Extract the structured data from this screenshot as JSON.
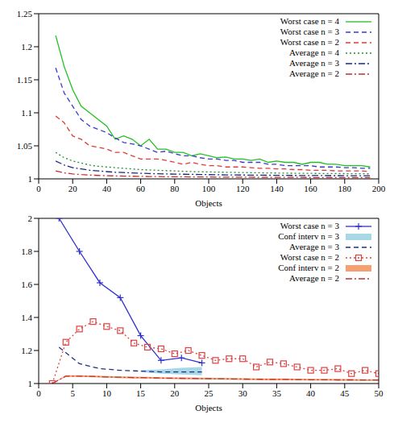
{
  "chart_data": [
    {
      "type": "line",
      "x_label": "Objects",
      "xlim": [
        0,
        200
      ],
      "xticks": [
        0,
        20,
        40,
        60,
        80,
        100,
        120,
        140,
        160,
        180,
        200
      ],
      "ylim": [
        1,
        1.25
      ],
      "yticks": [
        1,
        1.05,
        1.1,
        1.15,
        1.2,
        1.25
      ],
      "legend": "upper right",
      "x": [
        10,
        15,
        20,
        25,
        30,
        35,
        40,
        45,
        50,
        55,
        60,
        65,
        70,
        75,
        80,
        85,
        90,
        95,
        100,
        105,
        110,
        115,
        120,
        125,
        130,
        135,
        140,
        145,
        150,
        155,
        160,
        165,
        170,
        175,
        180,
        185,
        190,
        195
      ],
      "series": [
        {
          "name": "Worst case n = 4",
          "color": "#22c022",
          "line_style": "solid",
          "values": [
            1.217,
            1.17,
            1.135,
            1.11,
            1.1,
            1.09,
            1.08,
            1.06,
            1.065,
            1.06,
            1.05,
            1.06,
            1.045,
            1.045,
            1.04,
            1.04,
            1.035,
            1.038,
            1.035,
            1.032,
            1.033,
            1.03,
            1.03,
            1.028,
            1.03,
            1.025,
            1.027,
            1.025,
            1.025,
            1.022,
            1.025,
            1.025,
            1.022,
            1.022,
            1.02,
            1.02,
            1.02,
            1.018
          ]
        },
        {
          "name": "Worst case n = 3",
          "color": "#3a3ad0",
          "line_style": "dashed",
          "values": [
            1.168,
            1.13,
            1.11,
            1.09,
            1.08,
            1.075,
            1.07,
            1.062,
            1.055,
            1.053,
            1.05,
            1.045,
            1.04,
            1.042,
            1.038,
            1.035,
            1.035,
            1.032,
            1.03,
            1.03,
            1.028,
            1.028,
            1.025,
            1.025,
            1.025,
            1.022,
            1.022,
            1.02,
            1.02,
            1.02,
            1.02,
            1.018,
            1.018,
            1.018,
            1.017,
            1.017,
            1.016,
            1.016
          ]
        },
        {
          "name": "Worst case n = 2",
          "color": "#e03a3a",
          "line_style": "dashed",
          "values": [
            1.095,
            1.085,
            1.065,
            1.06,
            1.05,
            1.048,
            1.045,
            1.04,
            1.04,
            1.035,
            1.03,
            1.03,
            1.03,
            1.028,
            1.025,
            1.022,
            1.025,
            1.022,
            1.02,
            1.02,
            1.018,
            1.018,
            1.018,
            1.017,
            1.016,
            1.016,
            1.015,
            1.015,
            1.014,
            1.014,
            1.013,
            1.013,
            1.013,
            1.012,
            1.012,
            1.012,
            1.012,
            1.011
          ]
        },
        {
          "name": "Average n = 4",
          "color": "#1f8a3a",
          "line_style": "dotted",
          "values": [
            1.04,
            1.032,
            1.027,
            1.024,
            1.021,
            1.019,
            1.018,
            1.017,
            1.016,
            1.015,
            1.014,
            1.0135,
            1.013,
            1.0125,
            1.012,
            1.0115,
            1.011,
            1.0108,
            1.0105,
            1.0102,
            1.01,
            1.0098,
            1.0096,
            1.0094,
            1.0092,
            1.009,
            1.0088,
            1.0086,
            1.0085,
            1.0084,
            1.0083,
            1.0082,
            1.0081,
            1.008,
            1.0079,
            1.0078,
            1.0077,
            1.0076
          ]
        },
        {
          "name": "Average n = 3",
          "color": "#1c2a80",
          "line_style": "dashdot",
          "values": [
            1.027,
            1.021,
            1.017,
            1.015,
            1.013,
            1.012,
            1.011,
            1.01,
            1.0095,
            1.009,
            1.0085,
            1.008,
            1.0077,
            1.0074,
            1.0072,
            1.007,
            1.0068,
            1.0066,
            1.0064,
            1.0062,
            1.006,
            1.0059,
            1.0058,
            1.0057,
            1.0056,
            1.0055,
            1.0054,
            1.0053,
            1.0052,
            1.0051,
            1.005,
            1.005,
            1.0049,
            1.0049,
            1.0048,
            1.0048,
            1.0047,
            1.0047
          ]
        },
        {
          "name": "Average n = 2",
          "color": "#c03030",
          "line_style": "dashdot",
          "values": [
            1.012,
            1.009,
            1.0075,
            1.0065,
            1.0058,
            1.0052,
            1.0048,
            1.0045,
            1.0042,
            1.004,
            1.0038,
            1.0036,
            1.0034,
            1.0033,
            1.0032,
            1.0031,
            1.003,
            1.0029,
            1.0028,
            1.0027,
            1.0026,
            1.0026,
            1.0025,
            1.0025,
            1.0024,
            1.0024,
            1.0023,
            1.0023,
            1.0022,
            1.0022,
            1.0021,
            1.0021,
            1.002,
            1.002,
            1.002,
            1.0019,
            1.0019,
            1.0019
          ]
        }
      ]
    },
    {
      "type": "line",
      "x_label": "Objects",
      "xlim": [
        0,
        50
      ],
      "xticks": [
        0,
        5,
        10,
        15,
        20,
        25,
        30,
        35,
        40,
        45,
        50
      ],
      "ylim": [
        1,
        2
      ],
      "yticks": [
        1,
        1.2,
        1.4,
        1.6,
        1.8,
        2
      ],
      "legend": "upper right",
      "series": [
        {
          "name": "Worst case n = 3",
          "color": "#3030d0",
          "line_style": "solid",
          "marker": "plus",
          "x": [
            3,
            6,
            9,
            12,
            15,
            18,
            21,
            24
          ],
          "values": [
            2.0,
            1.8,
            1.61,
            1.52,
            1.29,
            1.14,
            1.155,
            1.125
          ]
        },
        {
          "name": "Conf interv n = 3",
          "type": "area",
          "color": "#a8d8e8",
          "x": [
            15,
            18,
            21,
            24
          ],
          "lower": [
            1.07,
            1.06,
            1.055,
            1.05
          ],
          "upper": [
            1.08,
            1.085,
            1.095,
            1.1
          ]
        },
        {
          "name": "Average n = 3",
          "color": "#203080",
          "line_style": "dashed",
          "x": [
            3,
            6,
            9,
            12,
            15,
            18,
            21,
            24
          ],
          "values": [
            1.22,
            1.12,
            1.09,
            1.08,
            1.075,
            1.07,
            1.07,
            1.07
          ]
        },
        {
          "name": "Worst case n = 2",
          "color": "#e04040",
          "line_style": "dotted",
          "marker": "square",
          "x": [
            2,
            4,
            6,
            8,
            10,
            12,
            14,
            16,
            18,
            20,
            22,
            24,
            26,
            28,
            30,
            32,
            34,
            36,
            38,
            40,
            42,
            44,
            46,
            48,
            50
          ],
          "values": [
            1.0,
            1.25,
            1.33,
            1.375,
            1.345,
            1.32,
            1.245,
            1.22,
            1.21,
            1.18,
            1.2,
            1.17,
            1.14,
            1.15,
            1.15,
            1.1,
            1.13,
            1.12,
            1.1,
            1.08,
            1.08,
            1.09,
            1.06,
            1.08,
            1.06
          ]
        },
        {
          "name": "Conf interv n = 2",
          "type": "area",
          "color": "#f4a070",
          "x": [
            2,
            4,
            6,
            8,
            10,
            12,
            14,
            16,
            18,
            20,
            22,
            24,
            26,
            28,
            30,
            32,
            34,
            36,
            38,
            40,
            42,
            44,
            46,
            48,
            50
          ],
          "lower": [
            1.0,
            1.04,
            1.04,
            1.038,
            1.035,
            1.033,
            1.031,
            1.03,
            1.028,
            1.027,
            1.026,
            1.025,
            1.024,
            1.023,
            1.022,
            1.021,
            1.02,
            1.02,
            1.019,
            1.018,
            1.018,
            1.017,
            1.017,
            1.016,
            1.016
          ],
          "upper": [
            1.0,
            1.05,
            1.05,
            1.048,
            1.045,
            1.043,
            1.041,
            1.04,
            1.038,
            1.037,
            1.036,
            1.035,
            1.034,
            1.033,
            1.032,
            1.031,
            1.03,
            1.03,
            1.029,
            1.028,
            1.028,
            1.027,
            1.027,
            1.026,
            1.026
          ]
        },
        {
          "name": "Average n = 2",
          "color": "#c03030",
          "line_style": "dashdot",
          "x": [
            2,
            4,
            6,
            8,
            10,
            12,
            14,
            16,
            18,
            20,
            22,
            24,
            26,
            28,
            30,
            32,
            34,
            36,
            38,
            40,
            42,
            44,
            46,
            48,
            50
          ],
          "values": [
            1.0,
            1.045,
            1.045,
            1.043,
            1.04,
            1.038,
            1.036,
            1.035,
            1.033,
            1.032,
            1.031,
            1.03,
            1.029,
            1.028,
            1.027,
            1.026,
            1.025,
            1.025,
            1.024,
            1.023,
            1.023,
            1.022,
            1.022,
            1.021,
            1.021
          ]
        }
      ]
    }
  ]
}
